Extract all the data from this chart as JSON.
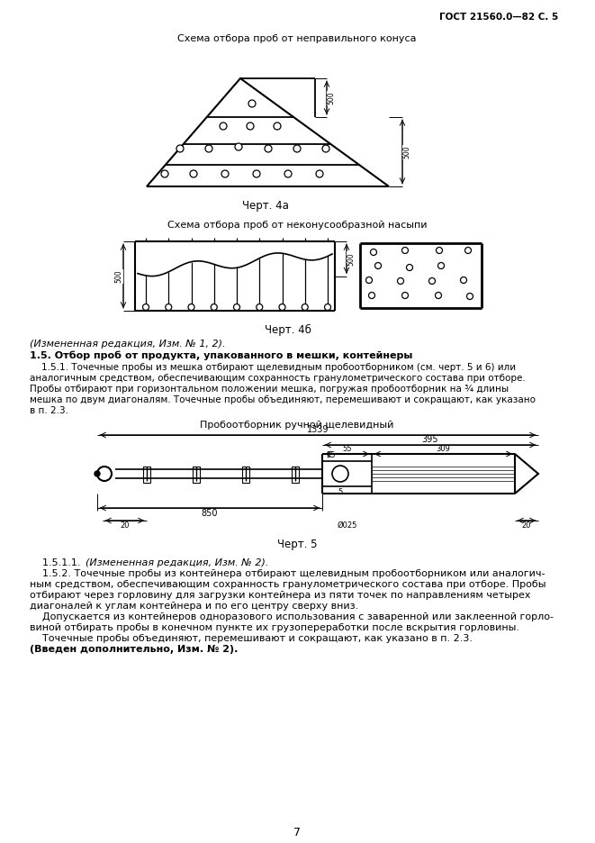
{
  "page_header": "ГОСТ 21560.0—82 С. 5",
  "fig1_title": "Схема отбора проб от неправильного конуса",
  "fig1_caption": "Черт. 4а",
  "fig2_title": "Схема отбора проб от неконусообразной насыпи",
  "fig2_caption": "Черт. 4б",
  "fig3_title": "Пробоотборник ручной щелевидный",
  "fig3_caption": "Черт. 5",
  "fig3_dim1": "1339",
  "fig3_dim2": "395",
  "fig3_dim3": "55",
  "fig3_dim4": "309",
  "fig3_dim5": "25",
  "fig3_dim6": "5",
  "fig3_dim7": "850",
  "fig3_dim8": "20",
  "fig3_dim9": "20",
  "fig3_dim10": "025",
  "section_header1": "(Измененная редакция, Изм. № 1, 2).",
  "section_header2": "1.5. Отбор проб от продукта, упакованного в мешки, контейнеры",
  "subsection151": "    1.5.1. Точечные пробы из мешка отбирают щелевидным пробоотборником (см. черт. 5 и 6) или",
  "subsection151b": "аналогичным средством, обеспечивающим сохранность гранулометрического состава при отборе.",
  "subsection151c": "Пробы отбирают при горизонтальном положении мешка, погружая пробоотборник на ¾ длины",
  "subsection151d": "мешка по двум диагоналям. Точечные пробы объединяют, перемешивают и сокращают, как указано",
  "subsection151e": "в п. 2.3.",
  "subsec1511": "    1.5.1.1. ",
  "subsec1511b": "(Измененная редакция, Изм. № 2).",
  "subsec152": "    1.5.2. Точечные пробы из контейнера отбирают щелевидным пробоотборником или аналогич-",
  "subsec152b": "ным средством, обеспечивающим сохранность гранулометрического состава при отборе. Пробы",
  "subsec152c": "отбирают через горловину для загрузки контейнера из пяти точек по направлениям четырех",
  "subsec152d": "диагоналей к углам контейнера и по его центру сверху вниз.",
  "subsec152e": "    Допускается из контейнеров одноразового использования с заваренной или заклеенной горло-",
  "subsec152f": "виной отбирать пробы в конечном пункте их грузопереработки после вскрытия горловины.",
  "subsec152g": "    Точечные пробы объединяют, перемешивают и сокращают, как указано в п. 2.3.",
  "footer_bold": "(Введен дополнительно, Изм. № 2).",
  "page_num": "7",
  "bg_color": "#ffffff",
  "text_color": "#000000"
}
